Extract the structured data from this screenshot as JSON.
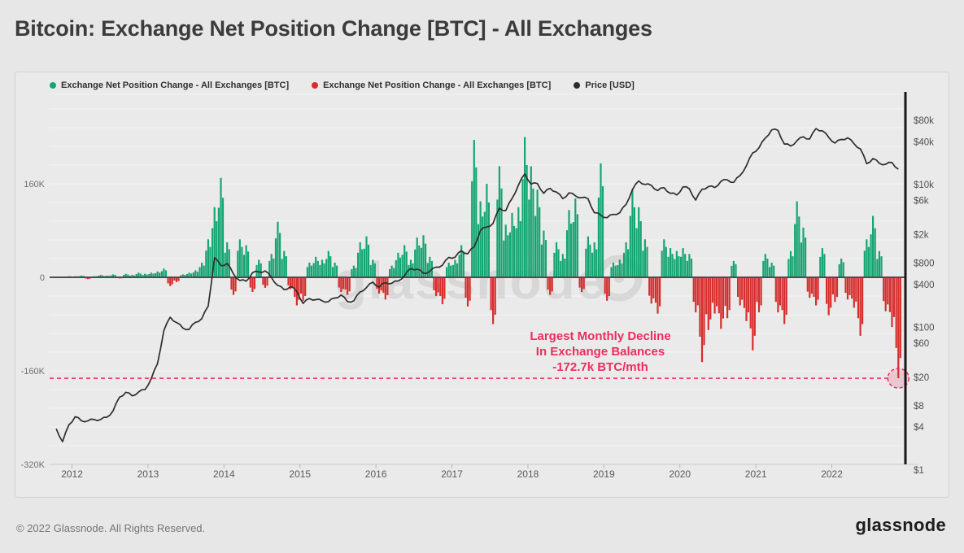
{
  "page": {
    "title": "Bitcoin: Exchange Net Position Change [BTC] - All Exchanges",
    "footer_copyright": "© 2022 Glassnode. All Rights Reserved.",
    "footer_brand": "glassnode",
    "watermark": "glassnode"
  },
  "legend": [
    {
      "label": "Exchange Net Position Change - All Exchanges [BTC]",
      "color": "#15a573"
    },
    {
      "label": "Exchange Net Position Change - All Exchanges [BTC]",
      "color": "#d62e2e"
    },
    {
      "label": "Price [USD]",
      "color": "#2b2b2b"
    }
  ],
  "annotation": {
    "lines": [
      "Largest Monthly Decline",
      "In Exchange Balances",
      "-172.7k BTC/mth"
    ],
    "color": "#ee2c5e"
  },
  "chart_data": {
    "type": "combo",
    "title": "Bitcoin: Exchange Net Position Change [BTC] - All Exchanges",
    "x_axis": {
      "ticks": [
        2012,
        2013,
        2014,
        2015,
        2016,
        2017,
        2018,
        2019,
        2020,
        2021,
        2022
      ]
    },
    "left_axis": {
      "label": "Exchange Net Position Change [BTC]",
      "ticks": [
        "160K",
        "0",
        "-160K",
        "-320K"
      ],
      "tick_values_kbtc": [
        160,
        0,
        -160,
        -320
      ],
      "range_kbtc": [
        -330,
        315
      ],
      "grid_step_kbtc": 32
    },
    "right_axis": {
      "label": "Price [USD]",
      "scale": "log",
      "ticks": [
        "$80k",
        "$40k",
        "$10k",
        "$6k",
        "$2k",
        "$800",
        "$400",
        "$100",
        "$60",
        "$20",
        "$8",
        "$4",
        "$1"
      ],
      "tick_values_usd": [
        80000,
        40000,
        10000,
        6000,
        2000,
        800,
        400,
        100,
        60,
        20,
        8,
        4,
        1
      ]
    },
    "highlight_line": {
      "value_kbtc": -172.7,
      "style": "dashed",
      "color": "#ee2c5e"
    },
    "series": [
      {
        "name": "Exchange Net Position Change - All Exchanges [BTC]",
        "type": "bar",
        "unit": "kBTC per month",
        "color_positive": "#15a573",
        "color_negative": "#d62e2e",
        "start_year": 2011.7917,
        "step_years": 0.083333,
        "values_kbtc": [
          1,
          -1,
          2,
          2,
          3,
          -3,
          2,
          4,
          3,
          5,
          -2,
          6,
          4,
          8,
          6,
          8,
          10,
          15,
          -15,
          -8,
          5,
          8,
          12,
          25,
          65,
          120,
          170,
          60,
          -30,
          65,
          55,
          -25,
          30,
          -18,
          40,
          95,
          45,
          -20,
          -48,
          -40,
          25,
          35,
          30,
          45,
          25,
          -25,
          -30,
          20,
          60,
          70,
          30,
          -28,
          -38,
          20,
          42,
          55,
          30,
          68,
          72,
          35,
          -32,
          -46,
          25,
          30,
          55,
          -50,
          235,
          130,
          160,
          -80,
          190,
          90,
          110,
          120,
          240,
          190,
          150,
          80,
          -30,
          60,
          40,
          115,
          135,
          -25,
          70,
          60,
          195,
          -40,
          25,
          30,
          60,
          150,
          120,
          65,
          -45,
          -62,
          65,
          50,
          45,
          50,
          40,
          -60,
          -145,
          -90,
          -62,
          -88,
          -70,
          28,
          -48,
          -75,
          -125,
          -60,
          40,
          25,
          -60,
          -80,
          45,
          130,
          85,
          -35,
          -48,
          50,
          -65,
          -42,
          32,
          -38,
          -52,
          -100,
          65,
          105,
          45,
          -58,
          -85,
          -172.7
        ]
      },
      {
        "name": "Price [USD]",
        "type": "line",
        "axis": "right-log",
        "color": "#2d2d2d",
        "start_year": 2011.7917,
        "step_years": 0.083333,
        "values_usd": [
          3.8,
          2.5,
          4.3,
          5.6,
          4.9,
          4.9,
          5.1,
          5.1,
          5.5,
          6.8,
          10.5,
          12.3,
          11,
          12.4,
          13.4,
          19,
          31,
          90,
          139,
          117,
          98,
          94,
          118,
          133,
          198,
          950,
          735,
          790,
          560,
          455,
          445,
          585,
          600,
          620,
          500,
          388,
          338,
          375,
          320,
          217,
          254,
          245,
          236,
          230,
          258,
          284,
          230,
          236,
          314,
          362,
          430,
          368,
          425,
          416,
          448,
          532,
          670,
          655,
          575,
          610,
          700,
          745,
          960,
          965,
          1190,
          1080,
          1350,
          2300,
          2550,
          2870,
          4700,
          4340,
          6450,
          9900,
          14200,
          10200,
          10400,
          7600,
          8900,
          7900,
          6400,
          7700,
          7000,
          6600,
          6350,
          4050,
          3750,
          3450,
          3850,
          4050,
          5300,
          8550,
          11300,
          10100,
          9800,
          8300,
          9100,
          7600,
          7200,
          9350,
          8800,
          6100,
          8650,
          9450,
          9150,
          11200,
          11700,
          10800,
          13500,
          18500,
          28000,
          33000,
          45200,
          58800,
          57800,
          37300,
          35000,
          41500,
          47100,
          43800,
          61300,
          57000,
          46200,
          38500,
          43200,
          45500,
          37700,
          31800,
          19800,
          23300,
          20000,
          19400,
          20500,
          16500
        ]
      }
    ]
  }
}
